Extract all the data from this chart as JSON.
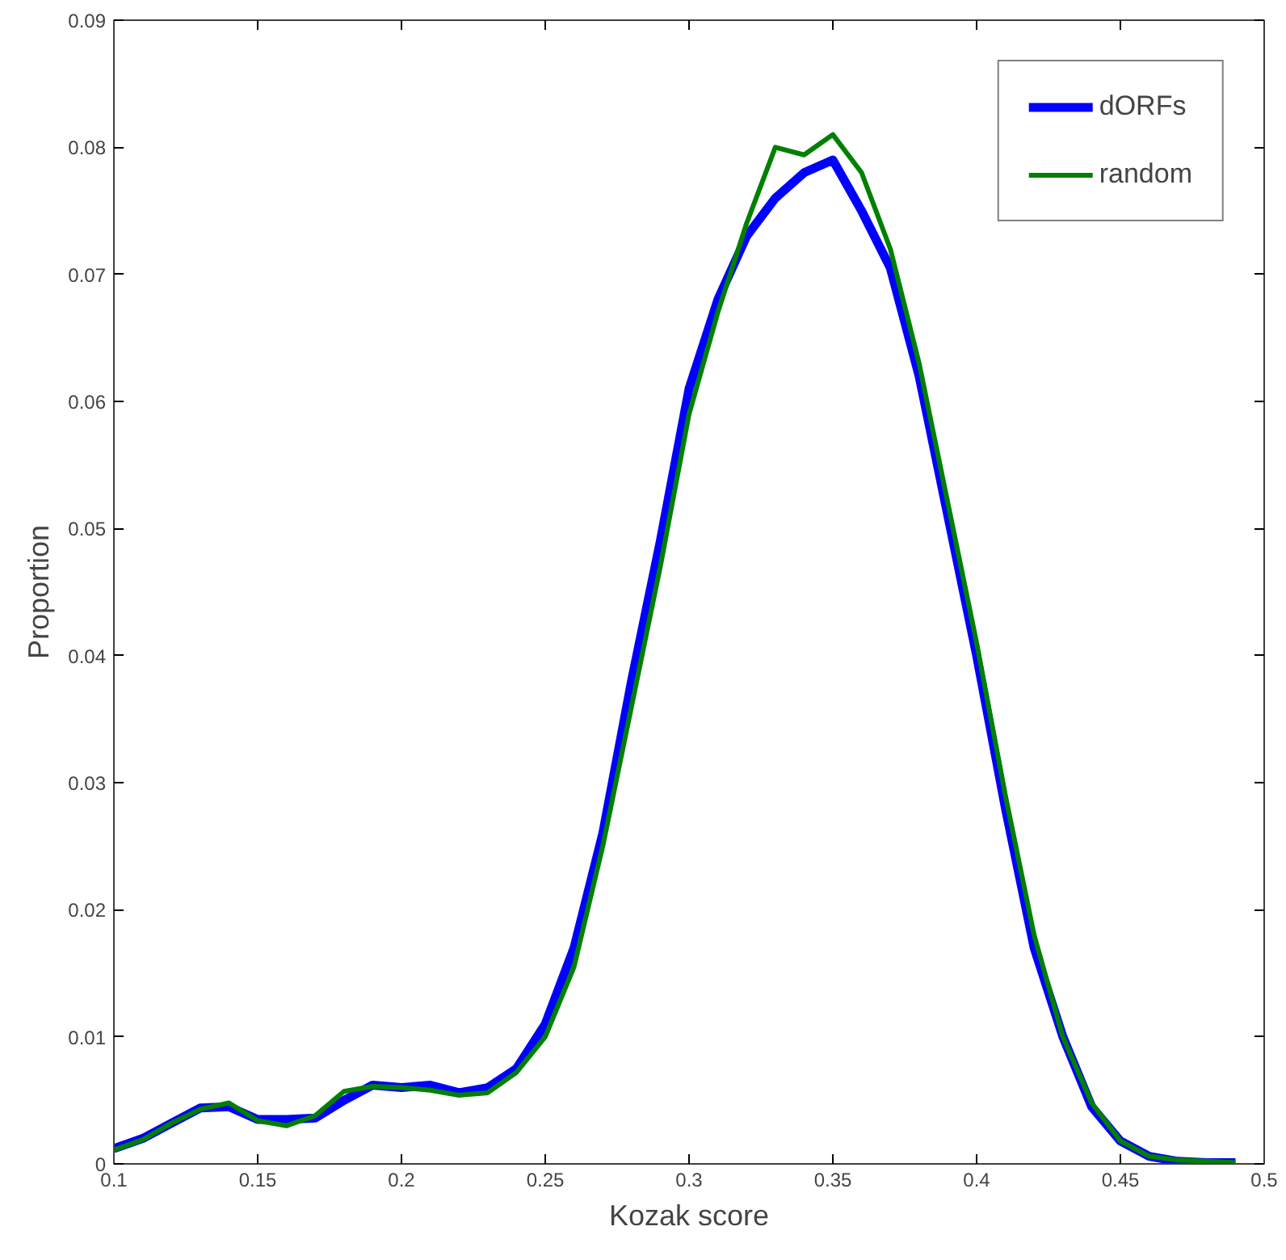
{
  "chart_data": {
    "type": "line",
    "xlabel": "Kozak score",
    "ylabel": "Proportion",
    "x": [
      0.1,
      0.11,
      0.12,
      0.13,
      0.14,
      0.15,
      0.16,
      0.17,
      0.18,
      0.19,
      0.2,
      0.21,
      0.22,
      0.23,
      0.24,
      0.25,
      0.26,
      0.27,
      0.28,
      0.29,
      0.3,
      0.31,
      0.32,
      0.33,
      0.34,
      0.35,
      0.36,
      0.37,
      0.38,
      0.39,
      0.4,
      0.41,
      0.42,
      0.43,
      0.44,
      0.45,
      0.46,
      0.47,
      0.48,
      0.49
    ],
    "series": [
      {
        "name": "dORFs",
        "color": "#0000ff",
        "values": [
          0.0012,
          0.002,
          0.0032,
          0.0044,
          0.0045,
          0.0035,
          0.0035,
          0.0036,
          0.005,
          0.0062,
          0.006,
          0.0062,
          0.0056,
          0.006,
          0.0075,
          0.011,
          0.017,
          0.026,
          0.038,
          0.049,
          0.061,
          0.068,
          0.073,
          0.076,
          0.078,
          0.079,
          0.075,
          0.0705,
          0.062,
          0.051,
          0.04,
          0.028,
          0.017,
          0.01,
          0.0045,
          0.0018,
          0.0006,
          0.0002,
          0.0001,
          0.0001
        ]
      },
      {
        "name": "random",
        "color": "#008000",
        "values": [
          0.0011,
          0.0019,
          0.0032,
          0.0043,
          0.0048,
          0.0034,
          0.003,
          0.0038,
          0.0057,
          0.0061,
          0.006,
          0.0058,
          0.0054,
          0.0056,
          0.0072,
          0.01,
          0.0155,
          0.025,
          0.036,
          0.047,
          0.059,
          0.067,
          0.074,
          0.08,
          0.0794,
          0.081,
          0.078,
          0.072,
          0.063,
          0.052,
          0.041,
          0.029,
          0.018,
          0.01,
          0.0048,
          0.0018,
          0.0006,
          0.0003,
          0.0002,
          0.0001
        ]
      }
    ],
    "xlim": [
      0.1,
      0.5
    ],
    "ylim": [
      0,
      0.09
    ],
    "xticks": [
      0.1,
      0.15,
      0.2,
      0.25,
      0.3,
      0.35,
      0.4,
      0.45,
      0.5
    ],
    "yticks": [
      0,
      0.01,
      0.02,
      0.03,
      0.04,
      0.05,
      0.06,
      0.07,
      0.08,
      0.09
    ],
    "grid": false,
    "legend": "top right",
    "marker": "none",
    "line_style": "solid"
  }
}
